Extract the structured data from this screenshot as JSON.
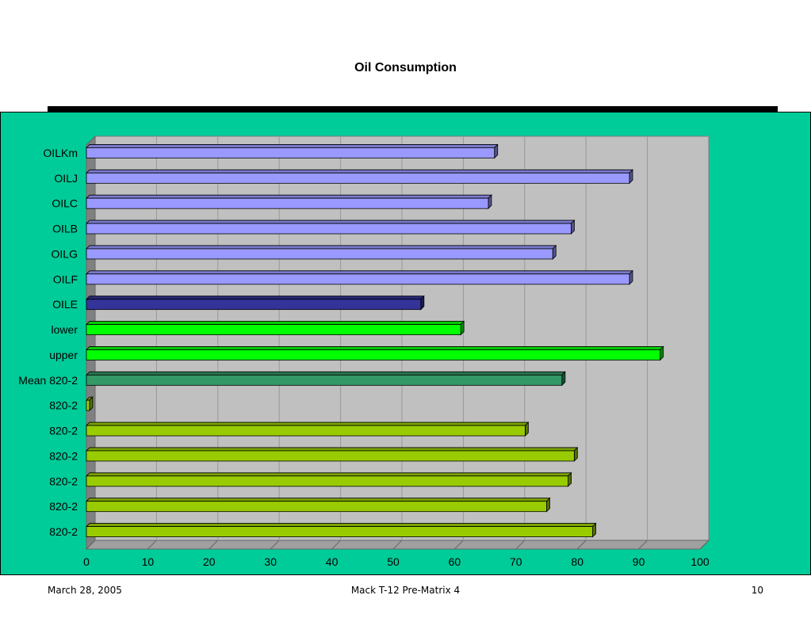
{
  "slide": {
    "title": "Oil Consumption",
    "footer_date": "March 28, 2005",
    "footer_center": "Mack T-12 Pre-Matrix 4",
    "footer_page": "10"
  },
  "colors": {
    "background_panel": "#00cc99",
    "plot_wall": "#c0c0c0",
    "gridline": "#999999"
  },
  "chart_data": {
    "type": "bar",
    "orientation": "horizontal",
    "style": "3d",
    "title": "Oil Consumption",
    "xlabel": "",
    "ylabel": "",
    "xlim": [
      0,
      100
    ],
    "x_ticks": [
      0,
      10,
      20,
      30,
      40,
      50,
      60,
      70,
      80,
      90,
      100
    ],
    "grid": true,
    "legend": "none",
    "categories": [
      "OILKm",
      "OILJ",
      "OILC",
      "OILB",
      "OILG",
      "OILF",
      "OILE",
      "lower",
      "upper",
      "Mean 820-2",
      "820-2",
      "820-2",
      "820-2",
      "820-2",
      "820-2",
      "820-2"
    ],
    "values": [
      66.5,
      88.5,
      65.5,
      79,
      76,
      88.5,
      54.5,
      61,
      93.5,
      77.5,
      0.5,
      71.5,
      79.5,
      78.5,
      75,
      82.5
    ],
    "bar_colors": [
      "#9999ff",
      "#9999ff",
      "#9999ff",
      "#9999ff",
      "#9999ff",
      "#9999ff",
      "#333399",
      "#00ff00",
      "#00ff00",
      "#339966",
      "#99cc00",
      "#99cc00",
      "#99cc00",
      "#99cc00",
      "#99cc00",
      "#99cc00"
    ]
  }
}
